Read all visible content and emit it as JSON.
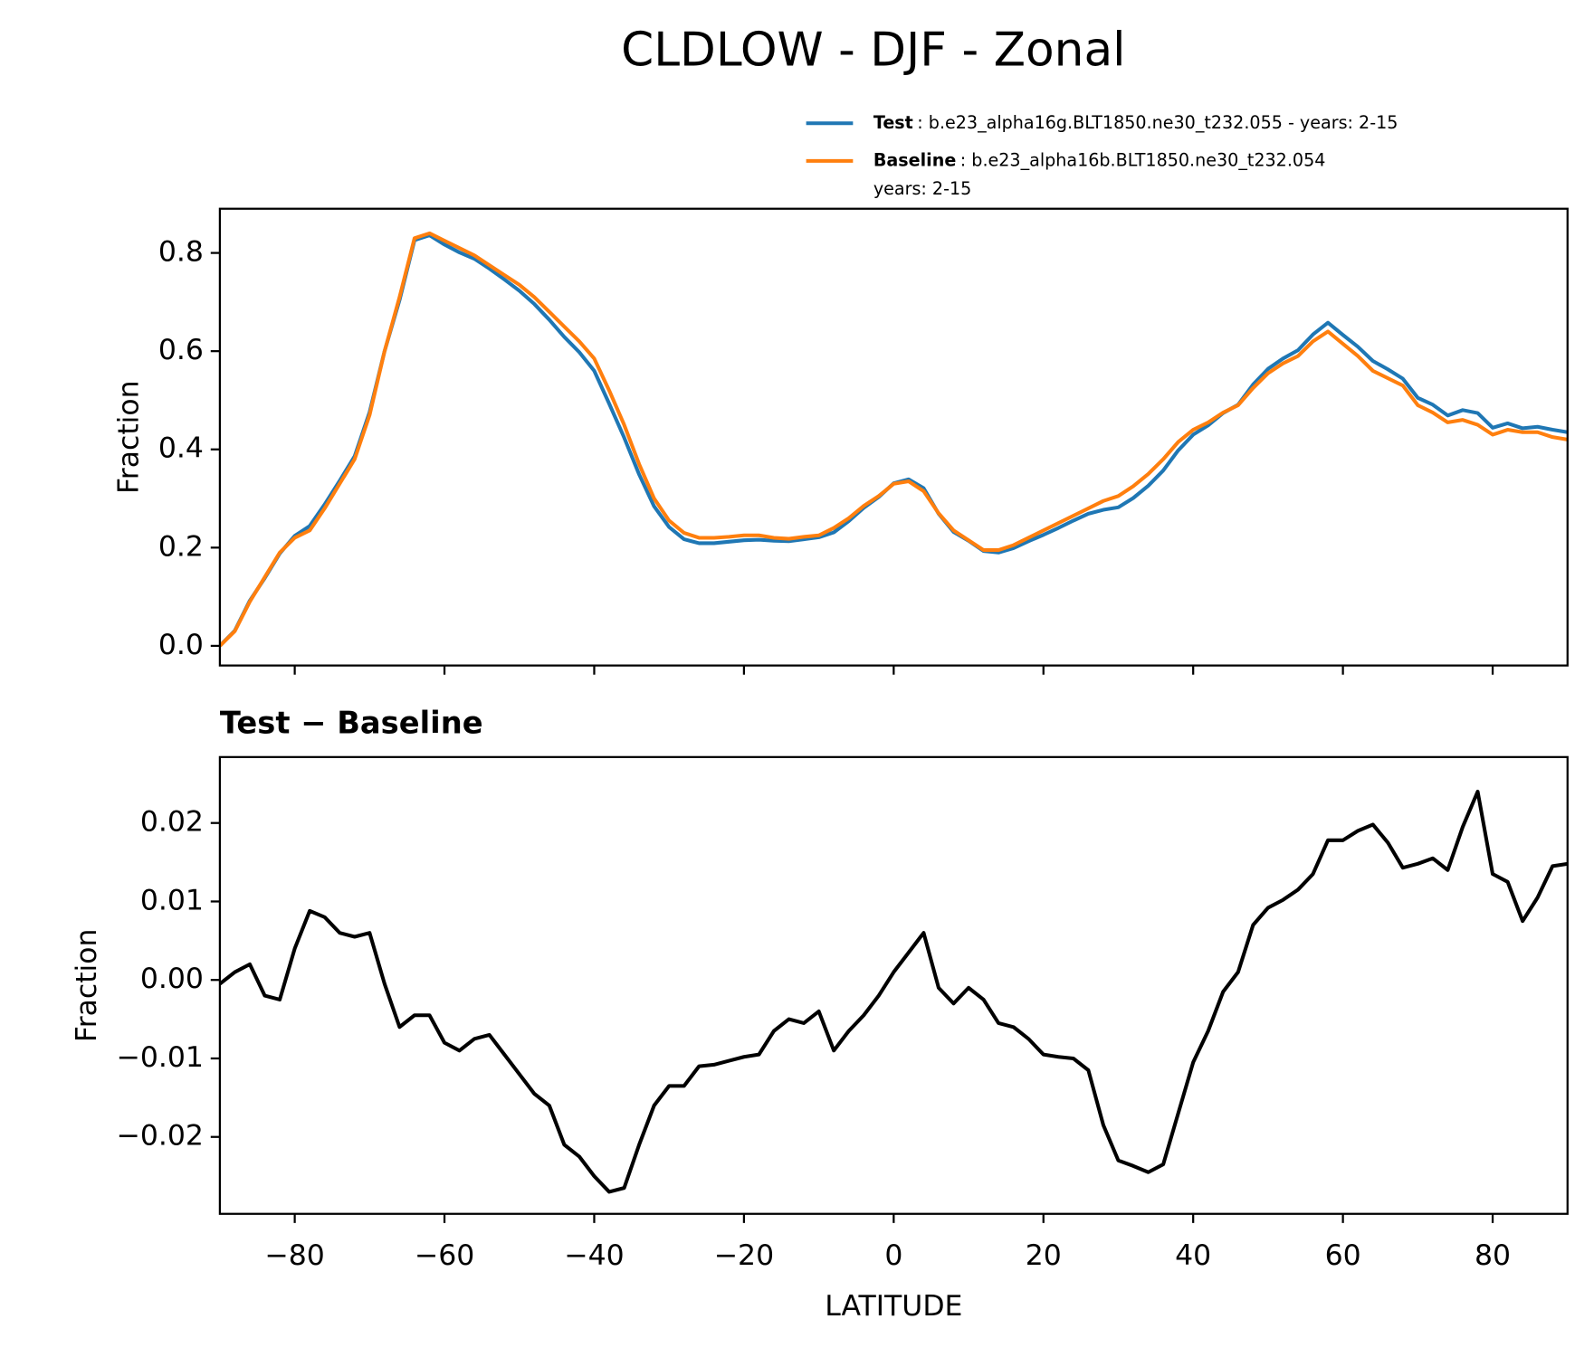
{
  "title": "CLDLOW - DJF - Zonal",
  "chart_data": [
    {
      "type": "line",
      "ylabel": "Fraction",
      "legend": "above-right",
      "show_xtick_labels": false,
      "xlim": [
        -90,
        90
      ],
      "ylim": [
        -0.04,
        0.89
      ],
      "xticks": [
        {
          "value": -80,
          "label": "−80"
        },
        {
          "value": -60,
          "label": "−60"
        },
        {
          "value": -40,
          "label": "−40"
        },
        {
          "value": -20,
          "label": "−20"
        },
        0,
        20,
        40,
        60,
        80
      ],
      "yticks": [
        {
          "value": 0,
          "label": "0.0"
        },
        0.2,
        0.4,
        0.6,
        0.8
      ],
      "x": [
        -90,
        -88,
        -86,
        -84,
        -82,
        -80,
        -78,
        -76,
        -74,
        -72,
        -70,
        -68,
        -66,
        -64,
        -62,
        -60,
        -58,
        -56,
        -54,
        -52,
        -50,
        -48,
        -46,
        -44,
        -42,
        -40,
        -38,
        -36,
        -34,
        -32,
        -30,
        -28,
        -26,
        -24,
        -22,
        -20,
        -18,
        -16,
        -14,
        -12,
        -10,
        -8,
        -6,
        -4,
        -2,
        0,
        2,
        4,
        6,
        8,
        10,
        12,
        14,
        16,
        18,
        20,
        22,
        24,
        26,
        28,
        30,
        32,
        34,
        36,
        38,
        40,
        42,
        44,
        46,
        48,
        50,
        52,
        54,
        56,
        58,
        60,
        62,
        64,
        66,
        68,
        70,
        72,
        74,
        76,
        78,
        80,
        82,
        84,
        86,
        88,
        90
      ],
      "series": [
        {
          "name": "Test",
          "color": "#1f77b4",
          "legend_lines": [
            ": b.e23_alpha16g.BLT1850.ne30_t232.055 - years: 2-15"
          ],
          "values": [
            0.0,
            0.031,
            0.092,
            0.138,
            0.188,
            0.224,
            0.244,
            0.288,
            0.336,
            0.386,
            0.476,
            0.6,
            0.704,
            0.826,
            0.836,
            0.817,
            0.801,
            0.788,
            0.768,
            0.746,
            0.723,
            0.696,
            0.664,
            0.629,
            0.598,
            0.56,
            0.493,
            0.424,
            0.349,
            0.284,
            0.242,
            0.217,
            0.209,
            0.209,
            0.212,
            0.215,
            0.216,
            0.214,
            0.213,
            0.217,
            0.221,
            0.231,
            0.254,
            0.281,
            0.303,
            0.331,
            0.339,
            0.321,
            0.269,
            0.232,
            0.214,
            0.193,
            0.19,
            0.199,
            0.213,
            0.226,
            0.24,
            0.255,
            0.269,
            0.277,
            0.282,
            0.301,
            0.326,
            0.357,
            0.398,
            0.43,
            0.449,
            0.474,
            0.491,
            0.532,
            0.564,
            0.585,
            0.602,
            0.634,
            0.658,
            0.633,
            0.609,
            0.58,
            0.563,
            0.544,
            0.505,
            0.491,
            0.469,
            0.48,
            0.474,
            0.444,
            0.453,
            0.443,
            0.446,
            0.44,
            0.435
          ]
        },
        {
          "name": "Baseline",
          "color": "#ff7f0e",
          "legend_lines": [
            ": b.e23_alpha16b.BLT1850.ne30_t232.054",
            "years: 2-15"
          ],
          "values": [
            0.0,
            0.03,
            0.09,
            0.14,
            0.19,
            0.22,
            0.235,
            0.28,
            0.33,
            0.38,
            0.47,
            0.6,
            0.71,
            0.83,
            0.84,
            0.825,
            0.81,
            0.795,
            0.775,
            0.755,
            0.735,
            0.71,
            0.68,
            0.65,
            0.62,
            0.585,
            0.52,
            0.45,
            0.37,
            0.3,
            0.255,
            0.23,
            0.22,
            0.22,
            0.222,
            0.225,
            0.225,
            0.22,
            0.218,
            0.222,
            0.225,
            0.24,
            0.26,
            0.285,
            0.305,
            0.33,
            0.335,
            0.315,
            0.27,
            0.235,
            0.215,
            0.195,
            0.195,
            0.205,
            0.22,
            0.235,
            0.25,
            0.265,
            0.28,
            0.295,
            0.305,
            0.325,
            0.35,
            0.38,
            0.415,
            0.44,
            0.455,
            0.475,
            0.49,
            0.525,
            0.555,
            0.575,
            0.59,
            0.62,
            0.64,
            0.615,
            0.59,
            0.56,
            0.545,
            0.53,
            0.49,
            0.475,
            0.455,
            0.46,
            0.45,
            0.43,
            0.44,
            0.435,
            0.435,
            0.425,
            0.42
          ]
        }
      ]
    },
    {
      "type": "line",
      "title": "Test − Baseline",
      "ylabel": "Fraction",
      "xlabel": "LATITUDE",
      "show_xtick_labels": true,
      "xlim": [
        -90,
        90
      ],
      "ylim": [
        -0.0298,
        0.0284
      ],
      "xticks": [
        {
          "value": -80,
          "label": "−80"
        },
        {
          "value": -60,
          "label": "−60"
        },
        {
          "value": -40,
          "label": "−40"
        },
        {
          "value": -20,
          "label": "−20"
        },
        0,
        20,
        40,
        60,
        80
      ],
      "yticks": [
        {
          "value": -0.02,
          "label": "−0.02"
        },
        {
          "value": -0.01,
          "label": "−0.01"
        },
        {
          "value": 0,
          "label": "0.00"
        },
        0.01,
        0.02
      ],
      "x": [
        -90,
        -88,
        -86,
        -84,
        -82,
        -80,
        -78,
        -76,
        -74,
        -72,
        -70,
        -68,
        -66,
        -64,
        -62,
        -60,
        -58,
        -56,
        -54,
        -52,
        -50,
        -48,
        -46,
        -44,
        -42,
        -40,
        -38,
        -36,
        -34,
        -32,
        -30,
        -28,
        -26,
        -24,
        -22,
        -20,
        -18,
        -16,
        -14,
        -12,
        -10,
        -8,
        -6,
        -4,
        -2,
        0,
        2,
        4,
        6,
        8,
        10,
        12,
        14,
        16,
        18,
        20,
        22,
        24,
        26,
        28,
        30,
        32,
        34,
        36,
        38,
        40,
        42,
        44,
        46,
        48,
        50,
        52,
        54,
        56,
        58,
        60,
        62,
        64,
        66,
        68,
        70,
        72,
        74,
        76,
        78,
        80,
        82,
        84,
        86,
        88,
        90
      ],
      "series": [
        {
          "color": "#000000",
          "values": [
            -0.0005,
            0.001,
            0.002,
            -0.002,
            -0.0025,
            0.004,
            0.0088,
            0.008,
            0.006,
            0.0055,
            0.006,
            -0.0005,
            -0.006,
            -0.0045,
            -0.0045,
            -0.008,
            -0.009,
            -0.0075,
            -0.007,
            -0.0095,
            -0.012,
            -0.0145,
            -0.016,
            -0.021,
            -0.0225,
            -0.025,
            -0.027,
            -0.0265,
            -0.021,
            -0.016,
            -0.0135,
            -0.0135,
            -0.011,
            -0.0108,
            -0.0103,
            -0.0098,
            -0.0095,
            -0.0065,
            -0.005,
            -0.0055,
            -0.004,
            -0.009,
            -0.0065,
            -0.0045,
            -0.002,
            0.001,
            0.0035,
            0.006,
            -0.001,
            -0.003,
            -0.001,
            -0.0025,
            -0.0055,
            -0.006,
            -0.0075,
            -0.0095,
            -0.0098,
            -0.01,
            -0.0115,
            -0.0185,
            -0.023,
            -0.0237,
            -0.0245,
            -0.0235,
            -0.017,
            -0.0105,
            -0.0065,
            -0.0015,
            0.001,
            0.007,
            0.0092,
            0.0102,
            0.0115,
            0.0135,
            0.0178,
            0.0178,
            0.019,
            0.0198,
            0.0175,
            0.0143,
            0.0148,
            0.0155,
            0.014,
            0.0195,
            0.024,
            0.0135,
            0.0125,
            0.0075,
            0.0105,
            0.0145,
            0.0148
          ]
        }
      ]
    }
  ]
}
